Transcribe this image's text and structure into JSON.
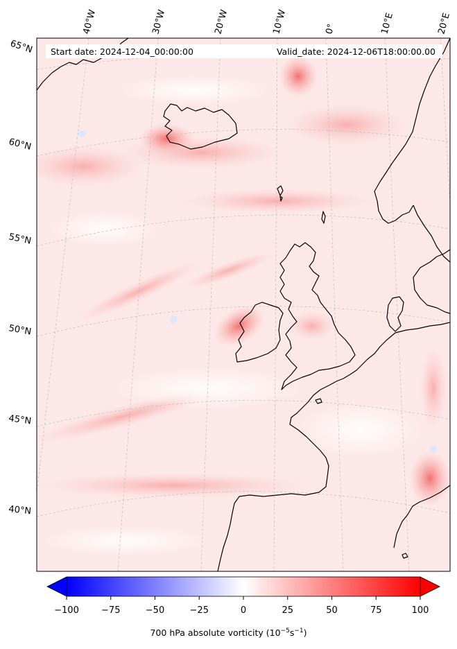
{
  "header": {
    "start_date": "Start date: 2024-12-04_00:00:00",
    "valid_date": "Valid_date: 2024-12-06T18:00:00.00"
  },
  "lon_labels": [
    "40°W",
    "30°W",
    "20°W",
    "10°W",
    "0°",
    "10°E",
    "20°E"
  ],
  "lat_labels": [
    "65°N",
    "60°N",
    "55°N",
    "50°N",
    "45°N",
    "40°N"
  ],
  "colorbar": {
    "ticks": [
      "−100",
      "−75",
      "−50",
      "−25",
      "0",
      "25",
      "50",
      "75",
      "100"
    ],
    "label_main": "700 hPa absolute vorticity (10",
    "label_exp1": "−5",
    "label_mid": "s",
    "label_exp2": "−1",
    "label_end": ")",
    "min_color": "#0000ff",
    "mid_color": "#ffffff",
    "max_color": "#ff0000"
  },
  "map": {
    "background_color": "#fde8e8",
    "coastline_color": "#000000",
    "gridline_color": "#b9b9b9"
  }
}
